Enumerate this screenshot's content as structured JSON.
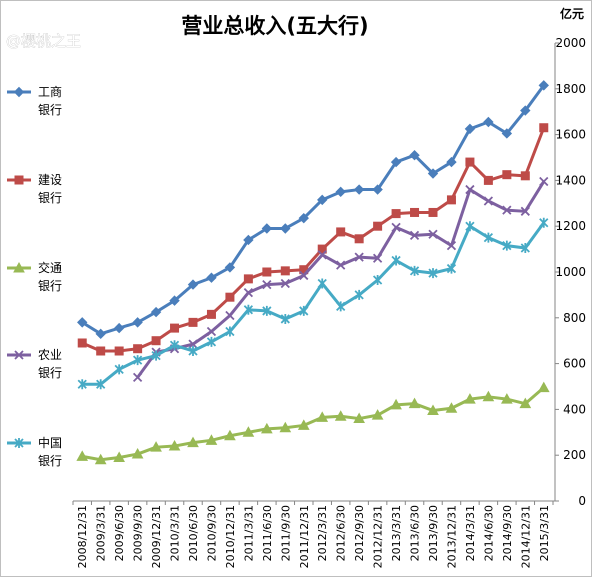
{
  "watermark": "@樱桃之王",
  "chart_data": {
    "type": "line",
    "title": "营业总收入(五大行)",
    "unit": "亿元",
    "ylim": [
      0,
      2000
    ],
    "yticks": [
      0,
      200,
      400,
      600,
      800,
      1000,
      1200,
      1400,
      1600,
      1800,
      2000
    ],
    "grid": false,
    "legend_position": "left",
    "x": [
      "2008/12/31",
      "2009/3/31",
      "2009/6/30",
      "2009/9/30",
      "2009/12/31",
      "2010/3/31",
      "2010/6/30",
      "2010/9/30",
      "2010/12/31",
      "2011/3/31",
      "2011/6/30",
      "2011/9/30",
      "2011/12/31",
      "2012/3/31",
      "2012/6/30",
      "2012/9/30",
      "2012/12/31",
      "2013/3/31",
      "2013/6/30",
      "2013/9/30",
      "2013/12/31",
      "2014/3/31",
      "2014/6/30",
      "2014/9/30",
      "2014/12/31",
      "2015/3/31"
    ],
    "series": [
      {
        "name": "工商银行",
        "color": "#4a7ebb",
        "marker": "diamond",
        "values": [
          780,
          730,
          755,
          780,
          825,
          875,
          945,
          975,
          1020,
          1140,
          1190,
          1190,
          1235,
          1315,
          1350,
          1360,
          1360,
          1480,
          1510,
          1430,
          1480,
          1625,
          1655,
          1605,
          1705,
          1815
        ]
      },
      {
        "name": "建设银行",
        "color": "#be4b48",
        "marker": "square",
        "values": [
          690,
          655,
          655,
          665,
          700,
          755,
          780,
          815,
          890,
          970,
          1000,
          1005,
          1010,
          1100,
          1175,
          1145,
          1200,
          1255,
          1260,
          1260,
          1315,
          1480,
          1400,
          1425,
          1420,
          1630
        ]
      },
      {
        "name": "交通银行",
        "color": "#98b954",
        "marker": "triangle",
        "values": [
          195,
          180,
          190,
          205,
          235,
          240,
          255,
          265,
          285,
          300,
          315,
          320,
          330,
          365,
          370,
          360,
          375,
          420,
          425,
          395,
          405,
          445,
          455,
          445,
          425,
          495
        ]
      },
      {
        "name": "农业银行",
        "color": "#7d60a0",
        "marker": "x",
        "values": [
          null,
          null,
          null,
          540,
          650,
          665,
          685,
          740,
          810,
          910,
          945,
          950,
          985,
          1075,
          1030,
          1065,
          1060,
          1195,
          1160,
          1165,
          1115,
          1360,
          1310,
          1270,
          1265,
          1395
        ]
      },
      {
        "name": "中国银行",
        "color": "#46aac5",
        "marker": "asterisk",
        "values": [
          510,
          510,
          575,
          615,
          635,
          680,
          655,
          695,
          740,
          835,
          830,
          795,
          830,
          950,
          850,
          900,
          965,
          1050,
          1005,
          995,
          1015,
          1200,
          1150,
          1115,
          1105,
          1215
        ]
      }
    ]
  }
}
